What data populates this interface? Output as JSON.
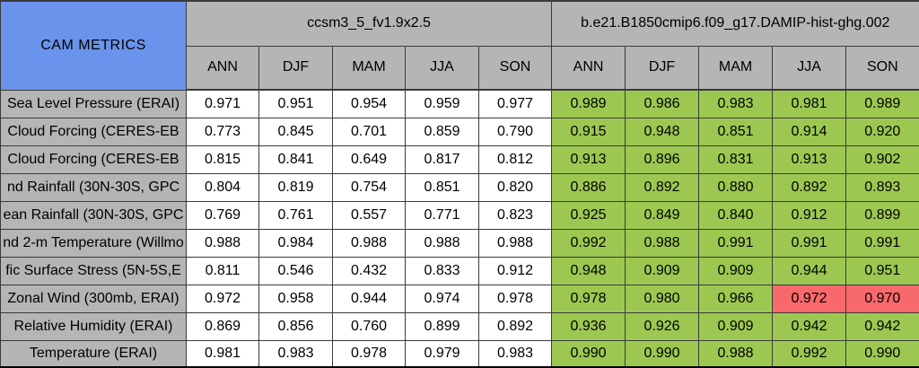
{
  "header": {
    "title": "CAM METRICS",
    "model1": "ccsm3_5_fv1.9x2.5",
    "model2": "b.e21.B1850cmip6.f09_g17.DAMIP-hist-ghg.002",
    "seasons": [
      "ANN",
      "DJF",
      "MAM",
      "JJA",
      "SON"
    ]
  },
  "colors": {
    "blue": "#6A94EB",
    "gray": "#B5B5B5",
    "green": "#9CC851",
    "red": "#F8696B",
    "border": "#3A3A3A"
  },
  "chart_data": {
    "type": "table",
    "title": "CAM METRICS",
    "column_groups": [
      "ccsm3_5_fv1.9x2.5",
      "b.e21.B1850cmip6.f09_g17.DAMIP-hist-ghg.002"
    ],
    "columns": [
      "ANN",
      "DJF",
      "MAM",
      "JJA",
      "SON"
    ],
    "highlight_red_cells": [
      {
        "row_label": "Zonal Wind (300mb, ERAI)",
        "group": "b.e21.B1850cmip6.f09_g17.DAMIP-hist-ghg.002",
        "columns": [
          "JJA",
          "SON"
        ]
      }
    ],
    "rows": [
      {
        "label": "Sea Level Pressure (ERAI)",
        "model1": [
          "0.971",
          "0.951",
          "0.954",
          "0.959",
          "0.977"
        ],
        "model2": [
          "0.989",
          "0.986",
          "0.983",
          "0.981",
          "0.989"
        ],
        "model2_red": [
          false,
          false,
          false,
          false,
          false
        ]
      },
      {
        "label": "Cloud Forcing (CERES-EB",
        "model1": [
          "0.773",
          "0.845",
          "0.701",
          "0.859",
          "0.790"
        ],
        "model2": [
          "0.915",
          "0.948",
          "0.851",
          "0.914",
          "0.920"
        ],
        "model2_red": [
          false,
          false,
          false,
          false,
          false
        ]
      },
      {
        "label": "Cloud Forcing (CERES-EB",
        "model1": [
          "0.815",
          "0.841",
          "0.649",
          "0.817",
          "0.812"
        ],
        "model2": [
          "0.913",
          "0.896",
          "0.831",
          "0.913",
          "0.902"
        ],
        "model2_red": [
          false,
          false,
          false,
          false,
          false
        ]
      },
      {
        "label": "nd Rainfall (30N-30S, GPC",
        "model1": [
          "0.804",
          "0.819",
          "0.754",
          "0.851",
          "0.820"
        ],
        "model2": [
          "0.886",
          "0.892",
          "0.880",
          "0.892",
          "0.893"
        ],
        "model2_red": [
          false,
          false,
          false,
          false,
          false
        ]
      },
      {
        "label": "ean Rainfall (30N-30S, GPC",
        "model1": [
          "0.769",
          "0.761",
          "0.557",
          "0.771",
          "0.823"
        ],
        "model2": [
          "0.925",
          "0.849",
          "0.840",
          "0.912",
          "0.899"
        ],
        "model2_red": [
          false,
          false,
          false,
          false,
          false
        ]
      },
      {
        "label": "nd 2-m Temperature (Willmo",
        "model1": [
          "0.988",
          "0.984",
          "0.988",
          "0.988",
          "0.988"
        ],
        "model2": [
          "0.992",
          "0.988",
          "0.991",
          "0.991",
          "0.991"
        ],
        "model2_red": [
          false,
          false,
          false,
          false,
          false
        ]
      },
      {
        "label": "fic Surface Stress (5N-5S,E",
        "model1": [
          "0.811",
          "0.546",
          "0.432",
          "0.833",
          "0.912"
        ],
        "model2": [
          "0.948",
          "0.909",
          "0.909",
          "0.944",
          "0.951"
        ],
        "model2_red": [
          false,
          false,
          false,
          false,
          false
        ]
      },
      {
        "label": "Zonal Wind (300mb, ERAI)",
        "model1": [
          "0.972",
          "0.958",
          "0.944",
          "0.974",
          "0.978"
        ],
        "model2": [
          "0.978",
          "0.980",
          "0.966",
          "0.972",
          "0.970"
        ],
        "model2_red": [
          false,
          false,
          false,
          true,
          true
        ]
      },
      {
        "label": "Relative Humidity (ERAI)",
        "model1": [
          "0.869",
          "0.856",
          "0.760",
          "0.899",
          "0.892"
        ],
        "model2": [
          "0.936",
          "0.926",
          "0.909",
          "0.942",
          "0.942"
        ],
        "model2_red": [
          false,
          false,
          false,
          false,
          false
        ]
      },
      {
        "label": "Temperature (ERAI)",
        "model1": [
          "0.981",
          "0.983",
          "0.978",
          "0.979",
          "0.983"
        ],
        "model2": [
          "0.990",
          "0.990",
          "0.988",
          "0.992",
          "0.990"
        ],
        "model2_red": [
          false,
          false,
          false,
          false,
          false
        ]
      }
    ]
  }
}
